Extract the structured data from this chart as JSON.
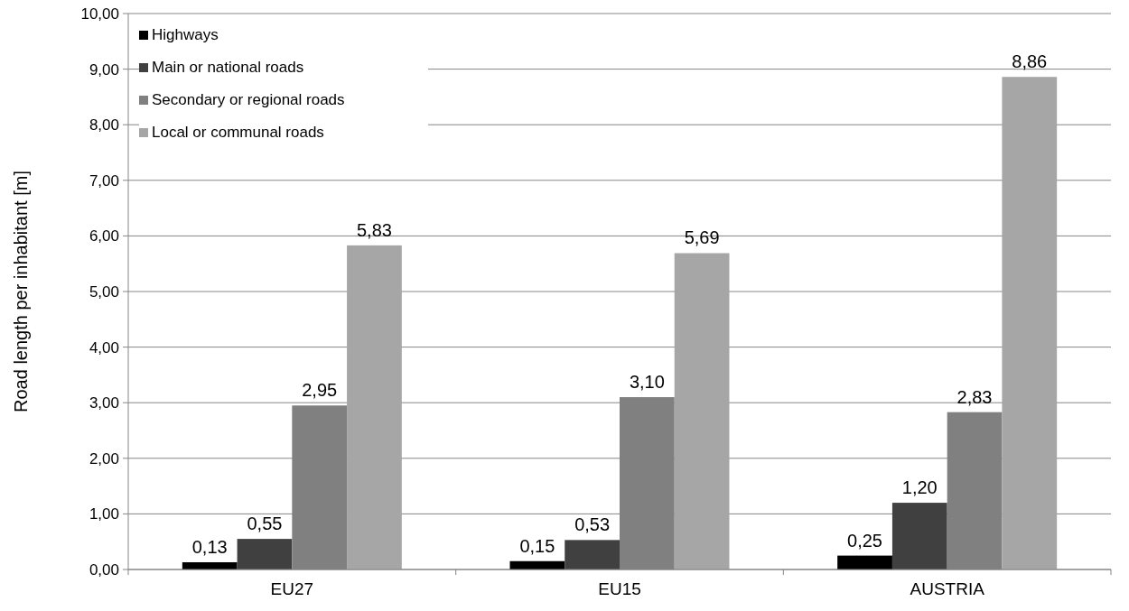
{
  "chart_data": {
    "type": "bar",
    "ylabel": "Road length per inhabitant [m]",
    "categories": [
      "EU27",
      "EU15",
      "AUSTRIA"
    ],
    "series": [
      {
        "name": "Highways",
        "color": "#000000",
        "values": [
          0.13,
          0.15,
          0.25
        ],
        "value_labels": [
          "0,13",
          "0,15",
          "0,25"
        ]
      },
      {
        "name": "Main or national roads",
        "color": "#404040",
        "values": [
          0.55,
          0.53,
          1.2
        ],
        "value_labels": [
          "0,55",
          "0,53",
          "1,20"
        ]
      },
      {
        "name": "Secondary or regional roads",
        "color": "#808080",
        "values": [
          2.95,
          3.1,
          2.83
        ],
        "value_labels": [
          "2,95",
          "3,10",
          "2,83"
        ]
      },
      {
        "name": "Local or communal roads",
        "color": "#a6a6a6",
        "values": [
          5.83,
          5.69,
          8.86
        ],
        "value_labels": [
          "5,83",
          "5,69",
          "8,86"
        ]
      }
    ],
    "ylim": [
      0,
      10
    ],
    "yticks": [
      {
        "value": 0,
        "label": "0,00"
      },
      {
        "value": 1,
        "label": "1,00"
      },
      {
        "value": 2,
        "label": "2,00"
      },
      {
        "value": 3,
        "label": "3,00"
      },
      {
        "value": 4,
        "label": "4,00"
      },
      {
        "value": 5,
        "label": "5,00"
      },
      {
        "value": 6,
        "label": "6,00"
      },
      {
        "value": 7,
        "label": "7,00"
      },
      {
        "value": 8,
        "label": "8,00"
      },
      {
        "value": 9,
        "label": "9,00"
      },
      {
        "value": 10,
        "label": "10,00"
      }
    ],
    "grid": "y",
    "legend": "top left"
  }
}
